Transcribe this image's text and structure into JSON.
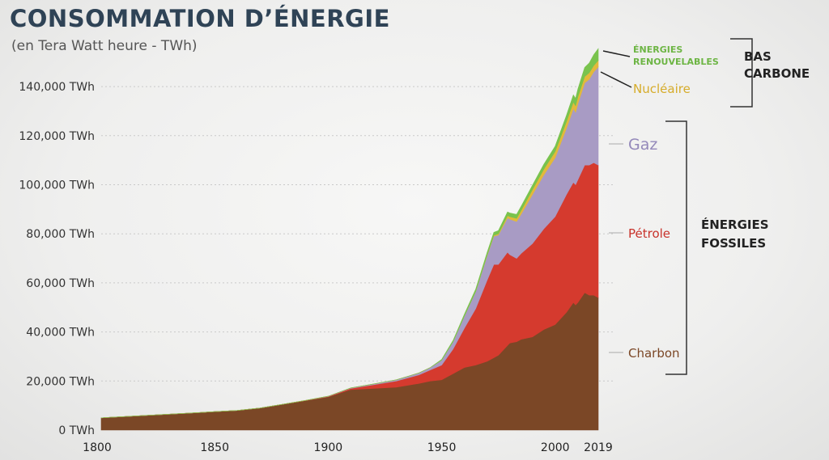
{
  "title": "CONSOMMATION D’ÉNERGIE",
  "subtitle": "(en Tera Watt heure - TWh)",
  "chart_data": {
    "type": "area",
    "stacked": true,
    "x": [
      1800,
      1810,
      1820,
      1830,
      1840,
      1850,
      1860,
      1870,
      1880,
      1890,
      1900,
      1910,
      1920,
      1930,
      1940,
      1945,
      1950,
      1955,
      1960,
      1965,
      1970,
      1973,
      1975,
      1979,
      1980,
      1983,
      1985,
      1990,
      1995,
      2000,
      2005,
      2008,
      2009,
      2010,
      2013,
      2015,
      2017,
      2019
    ],
    "x_ticks": [
      "1800",
      "1850",
      "1900",
      "1950",
      "2000",
      "2019"
    ],
    "ylim": [
      0,
      160000
    ],
    "y_ticks": [
      "0 TWh",
      "20,000 TWh",
      "40,000 TWh",
      "60,000 TWh",
      "80,000 TWh",
      "100,000 TWh",
      "120,000 TWh",
      "140,000 TWh"
    ],
    "y_tick_values": [
      0,
      20000,
      40000,
      60000,
      80000,
      100000,
      120000,
      140000
    ],
    "grid": true,
    "series": [
      {
        "name": "Charbon",
        "color": "#7b4726",
        "values": [
          5000,
          5500,
          6000,
          6500,
          7000,
          7500,
          8000,
          9000,
          10500,
          12000,
          13500,
          16500,
          17000,
          17500,
          19000,
          20000,
          20500,
          23000,
          25500,
          26500,
          28000,
          29500,
          30500,
          34500,
          35500,
          36000,
          37000,
          38000,
          41000,
          43000,
          48000,
          52000,
          51000,
          52000,
          56000,
          55000,
          55000,
          54000
        ]
      },
      {
        "name": "Pétrole",
        "color": "#d53a2e",
        "values": [
          0,
          0,
          0,
          0,
          0,
          0,
          0,
          0,
          0,
          100,
          200,
          500,
          1500,
          2500,
          3500,
          4500,
          6000,
          10000,
          16000,
          23000,
          33000,
          38000,
          37000,
          38000,
          36000,
          34000,
          35000,
          38000,
          41000,
          44000,
          48000,
          49000,
          49000,
          50000,
          52000,
          53000,
          54000,
          54000
        ]
      },
      {
        "name": "Gaz",
        "color": "#a89bc4",
        "values": [
          0,
          0,
          0,
          0,
          0,
          0,
          0,
          0,
          0,
          0,
          100,
          200,
          300,
          500,
          800,
          1000,
          2000,
          3000,
          5000,
          7000,
          10000,
          11500,
          12000,
          14000,
          14500,
          15000,
          16000,
          20000,
          22000,
          24000,
          27000,
          30000,
          29500,
          31000,
          33500,
          35000,
          37000,
          40000
        ]
      },
      {
        "name": "Nucléaire",
        "color": "#e2b93a",
        "values": [
          0,
          0,
          0,
          0,
          0,
          0,
          0,
          0,
          0,
          0,
          0,
          0,
          0,
          0,
          0,
          0,
          0,
          0,
          0,
          50,
          200,
          400,
          500,
          900,
          1000,
          1300,
          1500,
          2000,
          2300,
          2500,
          2700,
          2700,
          2700,
          2800,
          2600,
          2600,
          2600,
          2700
        ]
      },
      {
        "name": "Énergies renouvelables",
        "color": "#79c34d",
        "values": [
          0,
          0,
          0,
          0,
          0,
          0,
          0,
          0,
          0,
          0,
          0,
          0,
          0,
          0,
          0,
          0,
          300,
          500,
          700,
          900,
          1100,
          1200,
          1300,
          1500,
          1500,
          1600,
          1700,
          1800,
          2000,
          2200,
          2600,
          2900,
          3000,
          3200,
          3700,
          4000,
          4400,
          4800
        ]
      }
    ]
  },
  "labels": {
    "renouvelables_line1": "ÉNERGIES",
    "renouvelables_line2": "RENOUVELABLES",
    "nucleaire": "Nucléaire",
    "gaz": "Gaz",
    "petrole": "Pétrole",
    "charbon": "Charbon",
    "bas_carbone_line1": "BAS",
    "bas_carbone_line2": "CARBONE",
    "fossiles_line1": "ÉNERGIES",
    "fossiles_line2": "FOSSILES"
  }
}
